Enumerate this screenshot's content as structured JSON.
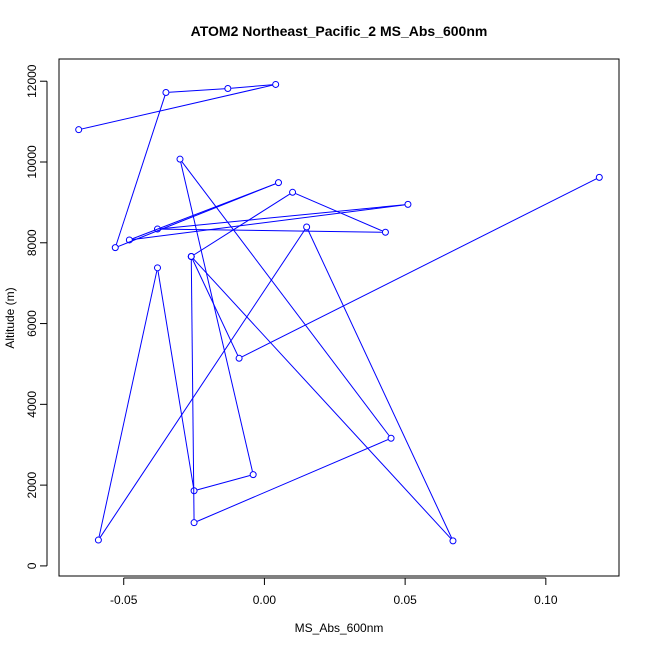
{
  "chart_data": {
    "type": "line",
    "title": "ATOM2 Northeast_Pacific_2 MS_Abs_600nm",
    "xlabel": "MS_Abs_600nm",
    "ylabel": "Altitude (m)",
    "xlim": [
      -0.073,
      0.126
    ],
    "ylim": [
      -250,
      12550
    ],
    "xticks": [
      -0.05,
      0.0,
      0.05,
      0.1
    ],
    "xtick_labels": [
      "-0.05",
      "0.00",
      "0.05",
      "0.10"
    ],
    "yticks": [
      0,
      2000,
      4000,
      6000,
      8000,
      10000,
      12000
    ],
    "ytick_labels": [
      "0",
      "2000",
      "4000",
      "6000",
      "8000",
      "10000",
      "12000"
    ],
    "grid": false,
    "series": [
      {
        "color": "#0000ff",
        "marker": "open-circle",
        "x": [
          -0.066,
          0.004,
          -0.013,
          -0.035,
          -0.053,
          0.005,
          -0.048,
          0.051,
          -0.038,
          0.043,
          0.01,
          -0.026,
          0.067,
          0.015,
          -0.059,
          -0.038,
          -0.025,
          -0.004,
          -0.03,
          0.045,
          -0.025,
          -0.026,
          -0.009,
          0.119
        ],
        "y": [
          10800,
          11920,
          11820,
          11720,
          7880,
          9490,
          8070,
          8950,
          8340,
          8260,
          9250,
          7660,
          620,
          8390,
          640,
          7380,
          1860,
          2260,
          10070,
          3160,
          1070,
          7660,
          5140,
          9620
        ]
      }
    ]
  }
}
